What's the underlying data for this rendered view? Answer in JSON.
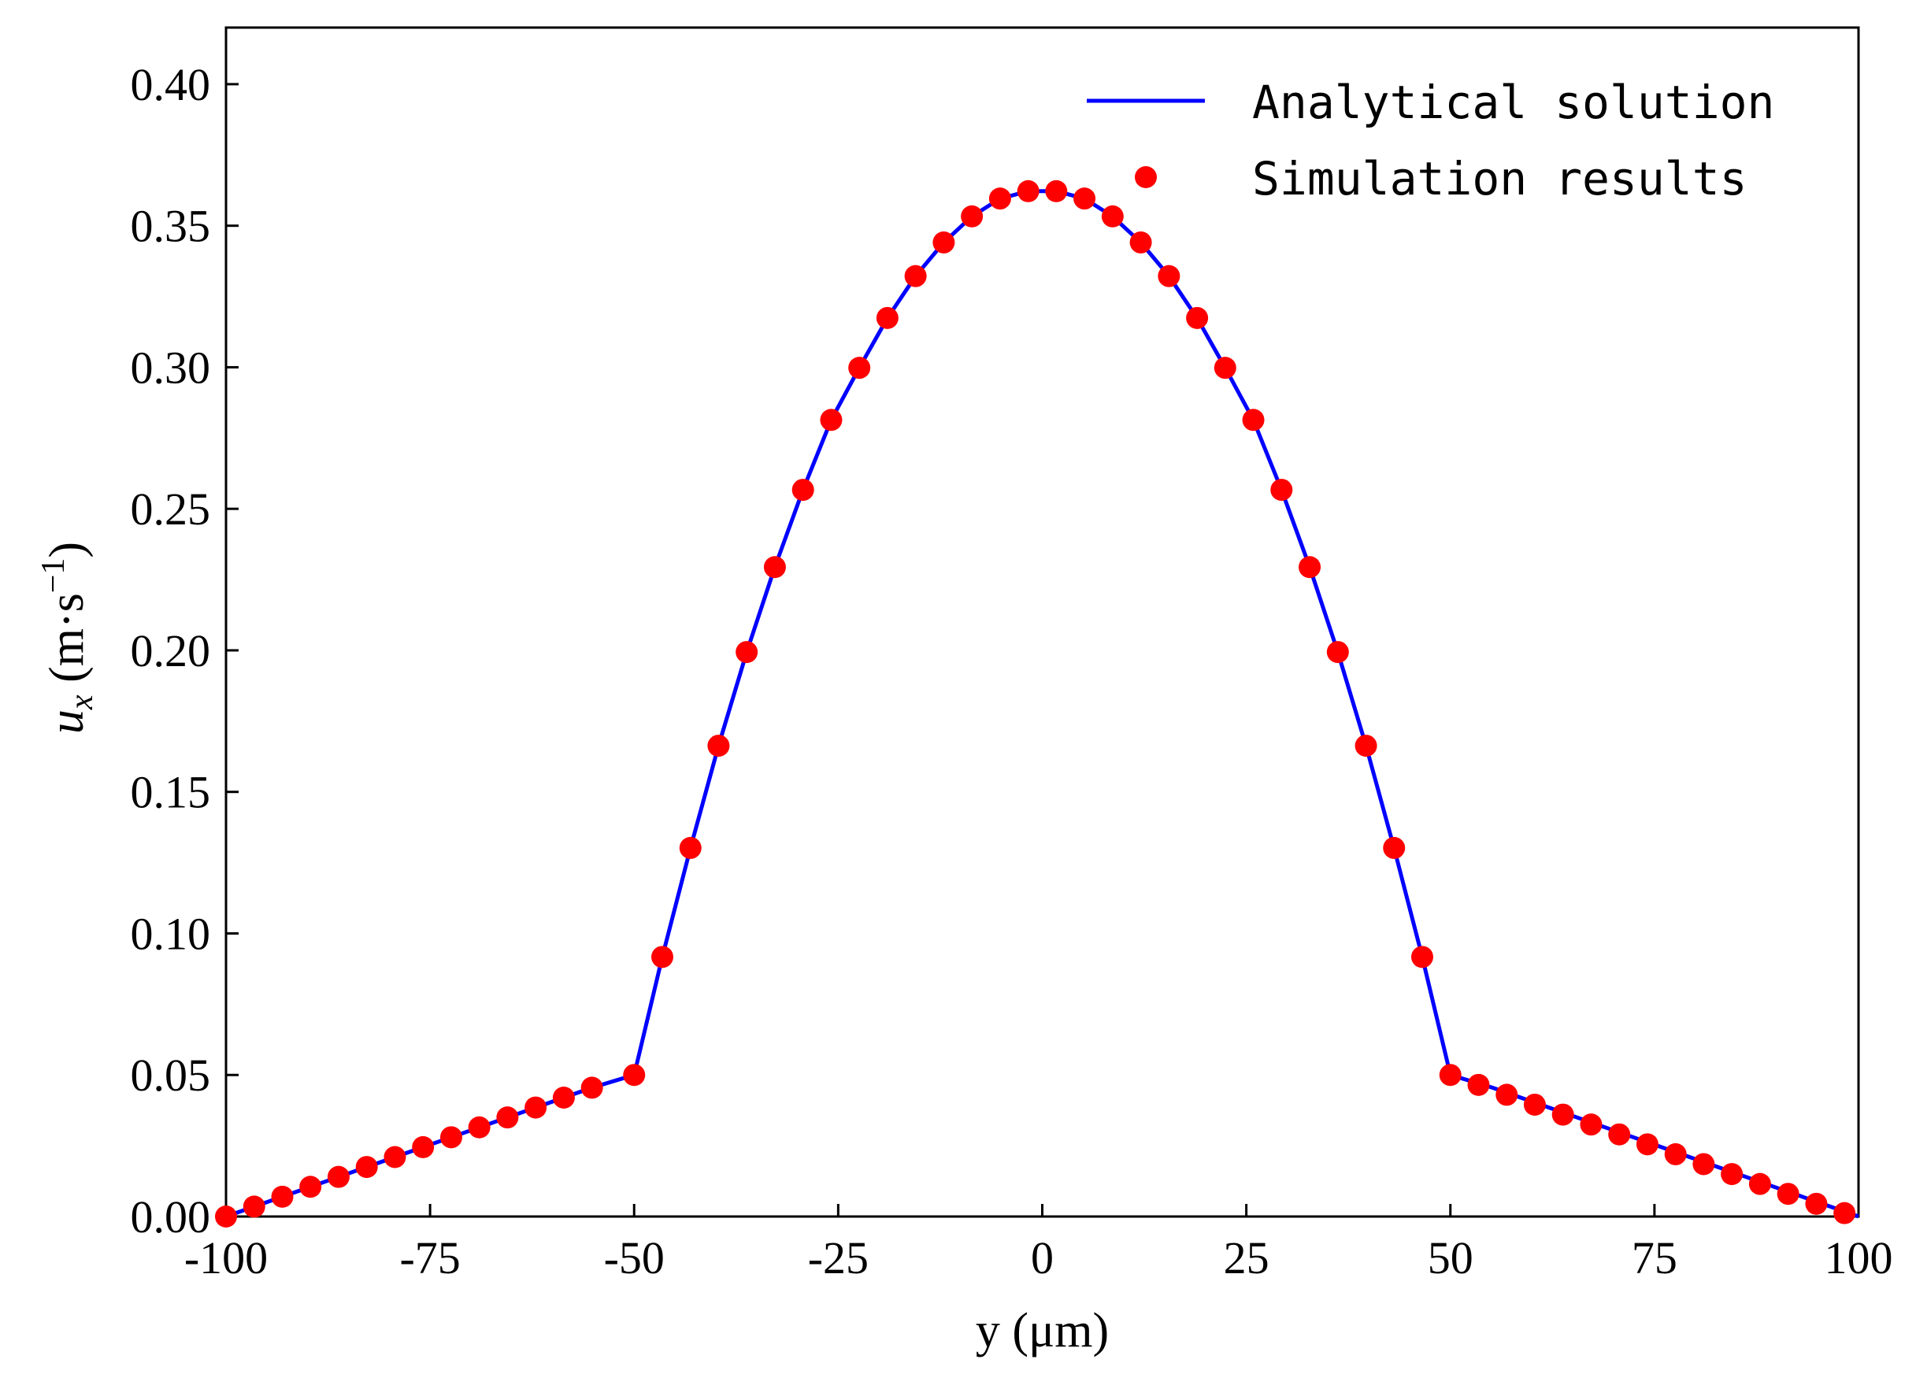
{
  "chart_data": {
    "type": "line",
    "xlabel": "y (μm)",
    "ylabel_main": "u",
    "ylabel_sub": "x",
    "ylabel_unit_prefix": " (m·s",
    "ylabel_unit_sup": "−1",
    "ylabel_unit_suffix": ")",
    "xlim": [
      -100,
      100
    ],
    "ylim": [
      0,
      0.42
    ],
    "xticks": [
      -100,
      -75,
      -50,
      -25,
      0,
      25,
      50,
      75,
      100
    ],
    "xtick_labels": [
      "-100",
      "-75",
      "-50",
      "-25",
      "0",
      "25",
      "50",
      "75",
      "100"
    ],
    "yticks": [
      0,
      0.05,
      0.1,
      0.15,
      0.2,
      0.25,
      0.3,
      0.35,
      0.4
    ],
    "ytick_labels": [
      "0.00",
      "0.05",
      "0.10",
      "0.15",
      "0.20",
      "0.25",
      "0.30",
      "0.35",
      "0.40"
    ],
    "grid": false,
    "legend_position": "top-right",
    "series": [
      {
        "name": "Analytical solution",
        "kind": "line",
        "color": "#0000ff",
        "x": [
          -100,
          -96.55,
          -93.1,
          -89.66,
          -86.21,
          -82.76,
          -79.31,
          -75.86,
          -72.41,
          -68.97,
          -65.52,
          -62.07,
          -58.62,
          -55.17,
          -50,
          -46.55,
          -43.1,
          -39.66,
          -36.21,
          -32.76,
          -29.31,
          -25.86,
          -22.41,
          -18.97,
          -15.52,
          -12.07,
          -8.62,
          -5.17,
          -1.72,
          1.72,
          5.17,
          8.62,
          12.07,
          15.52,
          18.97,
          22.41,
          25.86,
          29.31,
          32.76,
          36.21,
          39.66,
          43.1,
          46.55,
          50,
          55.17,
          58.62,
          62.07,
          65.52,
          68.97,
          72.41,
          75.86,
          79.31,
          82.76,
          86.21,
          89.66,
          93.1,
          96.55,
          100
        ],
        "y": [
          0,
          0.0035,
          0.007,
          0.0105,
          0.014,
          0.0175,
          0.021,
          0.0245,
          0.028,
          0.0315,
          0.035,
          0.0385,
          0.042,
          0.0455,
          0.05,
          0.0917,
          0.1302,
          0.1663,
          0.1994,
          0.2294,
          0.2567,
          0.2814,
          0.2998,
          0.3174,
          0.3322,
          0.3441,
          0.3533,
          0.3596,
          0.3622,
          0.3622,
          0.3596,
          0.3533,
          0.3441,
          0.3322,
          0.3174,
          0.2998,
          0.2814,
          0.2567,
          0.2294,
          0.1994,
          0.1663,
          0.1302,
          0.0917,
          0.05,
          0.0455,
          0.042,
          0.0385,
          0.035,
          0.0315,
          0.028,
          0.0245,
          0.021,
          0.0175,
          0.014,
          0.0105,
          0.007,
          0.0035,
          0
        ]
      },
      {
        "name": "Simulation results",
        "kind": "scatter",
        "color": "#ff0000",
        "x": [
          -100,
          -96.55,
          -93.1,
          -89.66,
          -86.21,
          -82.76,
          -79.31,
          -75.86,
          -72.41,
          -68.97,
          -65.52,
          -62.07,
          -58.62,
          -55.17,
          -50,
          -46.55,
          -43.1,
          -39.66,
          -36.21,
          -32.76,
          -29.31,
          -25.86,
          -22.41,
          -18.97,
          -15.52,
          -12.07,
          -8.62,
          -5.17,
          -1.72,
          1.72,
          5.17,
          8.62,
          12.07,
          15.52,
          18.97,
          22.41,
          25.86,
          29.31,
          32.76,
          36.21,
          39.66,
          43.1,
          46.55,
          50,
          53.45,
          56.9,
          60.34,
          63.79,
          67.24,
          70.69,
          74.14,
          77.59,
          81.03,
          84.48,
          87.93,
          91.38,
          94.83,
          98.28
        ],
        "y": [
          0,
          0.0035,
          0.007,
          0.0105,
          0.014,
          0.0175,
          0.021,
          0.0245,
          0.028,
          0.0315,
          0.035,
          0.0385,
          0.042,
          0.0455,
          0.05,
          0.0917,
          0.1302,
          0.1663,
          0.1994,
          0.2294,
          0.2567,
          0.2814,
          0.2998,
          0.3174,
          0.3322,
          0.3441,
          0.3533,
          0.3596,
          0.3622,
          0.3622,
          0.3596,
          0.3533,
          0.3441,
          0.3322,
          0.3174,
          0.2998,
          0.2814,
          0.2567,
          0.2294,
          0.1994,
          0.1663,
          0.1302,
          0.0917,
          0.05,
          0.0465,
          0.043,
          0.0395,
          0.036,
          0.0325,
          0.029,
          0.0255,
          0.022,
          0.0185,
          0.015,
          0.0115,
          0.008,
          0.0045,
          0.0012
        ]
      }
    ]
  }
}
